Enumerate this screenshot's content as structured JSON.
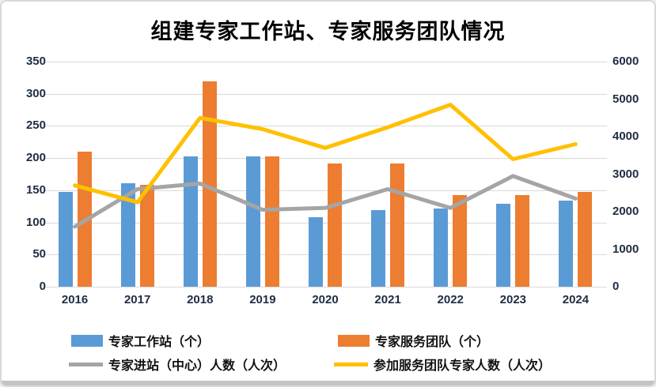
{
  "chart_data": {
    "type": "combo-bar-line",
    "title": "组建专家工作站、专家服务团队情况",
    "categories": [
      "2016",
      "2017",
      "2018",
      "2019",
      "2020",
      "2021",
      "2022",
      "2023",
      "2024"
    ],
    "series": [
      {
        "name": "专家工作站（个）",
        "type": "bar",
        "axis": "left",
        "color": "#5B9BD5",
        "values": [
          147,
          161,
          203,
          203,
          108,
          119,
          122,
          129,
          134
        ]
      },
      {
        "name": "专家服务团队（个）",
        "type": "bar",
        "axis": "left",
        "color": "#ED7D31",
        "values": [
          210,
          158,
          319,
          203,
          191,
          191,
          142,
          142,
          147
        ]
      },
      {
        "name": "专家进站（中心）人数（人次）",
        "type": "line",
        "axis": "right",
        "color": "#A5A5A5",
        "values": [
          1600,
          2600,
          2750,
          2050,
          2100,
          2600,
          2100,
          2950,
          2350
        ]
      },
      {
        "name": "参加服务团队专家人数（人次）",
        "type": "line",
        "axis": "right",
        "color": "#FFC000",
        "values": [
          2700,
          2250,
          4500,
          4200,
          3700,
          4250,
          4850,
          3400,
          3800
        ]
      }
    ],
    "left_axis": {
      "min": 0,
      "max": 350,
      "step": 50,
      "ticks": [
        0,
        50,
        100,
        150,
        200,
        250,
        300,
        350
      ]
    },
    "right_axis": {
      "min": 0,
      "max": 6000,
      "step": 1000,
      "ticks": [
        0,
        1000,
        2000,
        3000,
        4000,
        5000,
        6000
      ]
    },
    "grid": true,
    "legend_position": "bottom",
    "colors": {
      "grid": "#d9d9d9",
      "axis_text": "#1f2d42",
      "title_text": "#000000"
    }
  }
}
